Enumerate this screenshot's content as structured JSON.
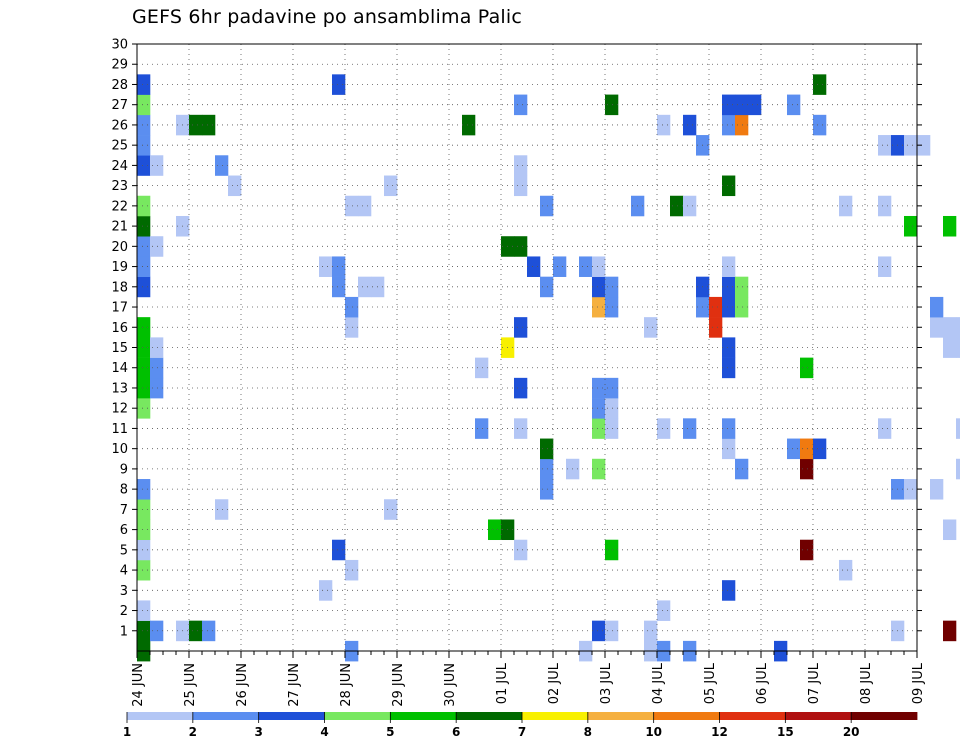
{
  "chart_data": {
    "type": "heatmap",
    "title": "GEFS 6hr padavine po ansamblima Palic",
    "xlabel": "",
    "ylabel": "",
    "y_range": [
      0,
      30
    ],
    "y_ticks": [
      1,
      2,
      3,
      4,
      5,
      6,
      7,
      8,
      9,
      10,
      11,
      12,
      13,
      14,
      15,
      16,
      17,
      18,
      19,
      20,
      21,
      22,
      23,
      24,
      25,
      26,
      27,
      28,
      29,
      30
    ],
    "x_range_days": [
      0,
      15
    ],
    "x_tick_labels": [
      "24 JUN",
      "25 JUN",
      "26 JUN",
      "27 JUN",
      "28 JUN",
      "29 JUN",
      "30 JUN",
      "01 JUL",
      "02 JUL",
      "03 JUL",
      "04 JUL",
      "05 JUL",
      "06 JUL",
      "07 JUL",
      "08 JUL",
      "09 JUL"
    ],
    "steps_per_day": 4,
    "grid": true,
    "legend_position": "bottom",
    "levels": [
      "1",
      "2",
      "3",
      "4",
      "5",
      "6",
      "7",
      "8",
      "10",
      "12",
      "15",
      "20"
    ],
    "level_colors": [
      "#b3c6f5",
      "#5b8ef0",
      "#1e50d8",
      "#78e860",
      "#00c000",
      "#006a00",
      "#f8f000",
      "#f5b040",
      "#f07a10",
      "#e03010",
      "#b01010",
      "#700000"
    ],
    "cells": [
      [
        0,
        0,
        5
      ],
      [
        0,
        1,
        5
      ],
      [
        0,
        2,
        0
      ],
      [
        0,
        4,
        3
      ],
      [
        0,
        5,
        0
      ],
      [
        0,
        6,
        3
      ],
      [
        0,
        7,
        3
      ],
      [
        0,
        8,
        1
      ],
      [
        0,
        12,
        3
      ],
      [
        0,
        13,
        4
      ],
      [
        0,
        14,
        4
      ],
      [
        0,
        15,
        4
      ],
      [
        0,
        16,
        4
      ],
      [
        0,
        18,
        2
      ],
      [
        0,
        19,
        1
      ],
      [
        0,
        20,
        1
      ],
      [
        0,
        21,
        5
      ],
      [
        0,
        22,
        3
      ],
      [
        0,
        24,
        2
      ],
      [
        0,
        25,
        1
      ],
      [
        0,
        26,
        1
      ],
      [
        0,
        27,
        3
      ],
      [
        0,
        28,
        2
      ],
      [
        1,
        1,
        1
      ],
      [
        1,
        13,
        1
      ],
      [
        1,
        14,
        1
      ],
      [
        1,
        15,
        0
      ],
      [
        1,
        20,
        0
      ],
      [
        1,
        24,
        0
      ],
      [
        3,
        21,
        0
      ],
      [
        3,
        26,
        0
      ],
      [
        3,
        1,
        0
      ],
      [
        4,
        1,
        5
      ],
      [
        4,
        26,
        5
      ],
      [
        5,
        1,
        1
      ],
      [
        5,
        26,
        5
      ],
      [
        6,
        24,
        1
      ],
      [
        6,
        7,
        0
      ],
      [
        7,
        23,
        0
      ],
      [
        14,
        3,
        0
      ],
      [
        14,
        19,
        0
      ],
      [
        15,
        5,
        2
      ],
      [
        15,
        18,
        1
      ],
      [
        15,
        19,
        1
      ],
      [
        15,
        28,
        2
      ],
      [
        16,
        0,
        1
      ],
      [
        16,
        4,
        0
      ],
      [
        16,
        16,
        0
      ],
      [
        16,
        17,
        1
      ],
      [
        16,
        22,
        0
      ],
      [
        17,
        18,
        0
      ],
      [
        17,
        22,
        0
      ],
      [
        18,
        18,
        0
      ],
      [
        19,
        7,
        0
      ],
      [
        19,
        23,
        0
      ],
      [
        25,
        26,
        5
      ],
      [
        26,
        11,
        1
      ],
      [
        26,
        14,
        0
      ],
      [
        27,
        6,
        4
      ],
      [
        28,
        6,
        5
      ],
      [
        28,
        15,
        6
      ],
      [
        28,
        20,
        5
      ],
      [
        29,
        5,
        0
      ],
      [
        29,
        11,
        0
      ],
      [
        29,
        13,
        2
      ],
      [
        29,
        16,
        2
      ],
      [
        29,
        20,
        5
      ],
      [
        29,
        23,
        0
      ],
      [
        29,
        24,
        0
      ],
      [
        29,
        27,
        1
      ],
      [
        30,
        19,
        2
      ],
      [
        31,
        8,
        1
      ],
      [
        31,
        9,
        1
      ],
      [
        31,
        10,
        5
      ],
      [
        31,
        18,
        1
      ],
      [
        31,
        22,
        1
      ],
      [
        32,
        19,
        1
      ],
      [
        33,
        9,
        0
      ],
      [
        34,
        0,
        0
      ],
      [
        34,
        19,
        1
      ],
      [
        35,
        1,
        2
      ],
      [
        35,
        9,
        3
      ],
      [
        35,
        11,
        3
      ],
      [
        35,
        12,
        1
      ],
      [
        35,
        13,
        1
      ],
      [
        35,
        17,
        7
      ],
      [
        35,
        18,
        2
      ],
      [
        35,
        19,
        0
      ],
      [
        36,
        1,
        0
      ],
      [
        36,
        5,
        4
      ],
      [
        36,
        11,
        0
      ],
      [
        36,
        12,
        0
      ],
      [
        36,
        13,
        1
      ],
      [
        36,
        17,
        1
      ],
      [
        36,
        18,
        1
      ],
      [
        36,
        27,
        5
      ],
      [
        38,
        22,
        1
      ],
      [
        39,
        0,
        0
      ],
      [
        39,
        1,
        0
      ],
      [
        39,
        16,
        0
      ],
      [
        40,
        0,
        1
      ],
      [
        40,
        2,
        0
      ],
      [
        40,
        11,
        0
      ],
      [
        40,
        26,
        0
      ],
      [
        41,
        22,
        5
      ],
      [
        42,
        0,
        1
      ],
      [
        42,
        11,
        1
      ],
      [
        42,
        22,
        0
      ],
      [
        42,
        26,
        2
      ],
      [
        43,
        17,
        1
      ],
      [
        43,
        18,
        2
      ],
      [
        43,
        25,
        1
      ],
      [
        44,
        16,
        9
      ],
      [
        44,
        17,
        9
      ],
      [
        45,
        3,
        2
      ],
      [
        45,
        10,
        0
      ],
      [
        45,
        11,
        1
      ],
      [
        45,
        14,
        2
      ],
      [
        45,
        15,
        2
      ],
      [
        45,
        17,
        2
      ],
      [
        45,
        18,
        2
      ],
      [
        45,
        19,
        0
      ],
      [
        45,
        23,
        5
      ],
      [
        45,
        26,
        1
      ],
      [
        45,
        27,
        2
      ],
      [
        46,
        9,
        1
      ],
      [
        46,
        17,
        3
      ],
      [
        46,
        18,
        3
      ],
      [
        46,
        26,
        8
      ],
      [
        46,
        27,
        2
      ],
      [
        47,
        27,
        2
      ],
      [
        49,
        0,
        2
      ],
      [
        50,
        10,
        1
      ],
      [
        50,
        27,
        1
      ],
      [
        51,
        5,
        11
      ],
      [
        51,
        9,
        11
      ],
      [
        51,
        10,
        8
      ],
      [
        51,
        14,
        4
      ],
      [
        52,
        10,
        2
      ],
      [
        52,
        26,
        1
      ],
      [
        52,
        28,
        5
      ],
      [
        54,
        4,
        0
      ],
      [
        54,
        22,
        0
      ],
      [
        57,
        11,
        0
      ],
      [
        57,
        19,
        0
      ],
      [
        57,
        22,
        0
      ],
      [
        57,
        25,
        0
      ],
      [
        58,
        1,
        0
      ],
      [
        58,
        8,
        1
      ],
      [
        58,
        25,
        2
      ],
      [
        59,
        8,
        0
      ],
      [
        59,
        21,
        4
      ],
      [
        59,
        25,
        0
      ],
      [
        60,
        25,
        0
      ],
      [
        61,
        8,
        0
      ],
      [
        61,
        16,
        0
      ],
      [
        61,
        17,
        1
      ],
      [
        62,
        6,
        0
      ],
      [
        62,
        21,
        4
      ],
      [
        62,
        15,
        0
      ],
      [
        62,
        16,
        0
      ],
      [
        62,
        1,
        11
      ],
      [
        63,
        9,
        0
      ],
      [
        63,
        11,
        0
      ],
      [
        63,
        15,
        0
      ],
      [
        63,
        16,
        0
      ],
      [
        64,
        19,
        0
      ],
      [
        65,
        21,
        1
      ],
      [
        65,
        26,
        0
      ],
      [
        66,
        15,
        0
      ],
      [
        67,
        4,
        10
      ],
      [
        67,
        10,
        1
      ],
      [
        67,
        19,
        10
      ],
      [
        68,
        6,
        2
      ],
      [
        68,
        8,
        2
      ],
      [
        68,
        14,
        2
      ],
      [
        68,
        15,
        2
      ],
      [
        68,
        22,
        2
      ],
      [
        68,
        26,
        2
      ],
      [
        68,
        27,
        2
      ],
      [
        68,
        29,
        2
      ],
      [
        69,
        6,
        5
      ],
      [
        69,
        14,
        6
      ],
      [
        69,
        27,
        4
      ],
      [
        69,
        29,
        4
      ],
      [
        70,
        28,
        6
      ],
      [
        71,
        23,
        10
      ],
      [
        72,
        3,
        2
      ],
      [
        72,
        19,
        0
      ],
      [
        72,
        23,
        6
      ],
      [
        72,
        26,
        0
      ],
      [
        72,
        29,
        1
      ]
    ],
    "colorbar": {
      "labels": [
        "1",
        "2",
        "3",
        "4",
        "5",
        "6",
        "7",
        "8",
        "10",
        "12",
        "15",
        "20"
      ]
    }
  }
}
